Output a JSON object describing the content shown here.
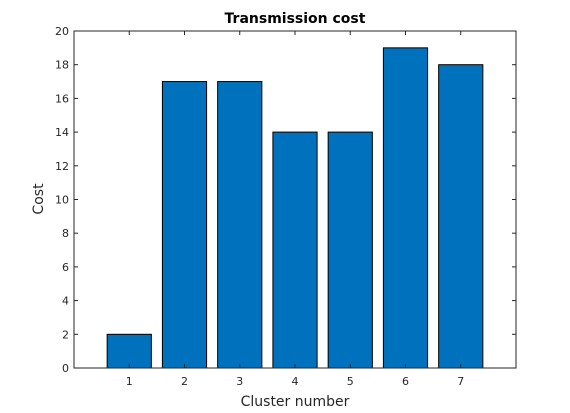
{
  "chart_data": {
    "type": "bar",
    "title": "Transmission cost",
    "xlabel": "Cluster number",
    "ylabel": "Cost",
    "categories": [
      "1",
      "2",
      "3",
      "4",
      "5",
      "6",
      "7"
    ],
    "values": [
      2,
      17,
      17,
      14,
      14,
      19,
      18
    ],
    "ylim": [
      0,
      20
    ],
    "yticks": [
      0,
      2,
      4,
      6,
      8,
      10,
      12,
      14,
      16,
      18,
      20
    ],
    "grid": false,
    "bar_color": "#0072BD",
    "edge_color": "#000000",
    "axis_color": "#262626"
  }
}
